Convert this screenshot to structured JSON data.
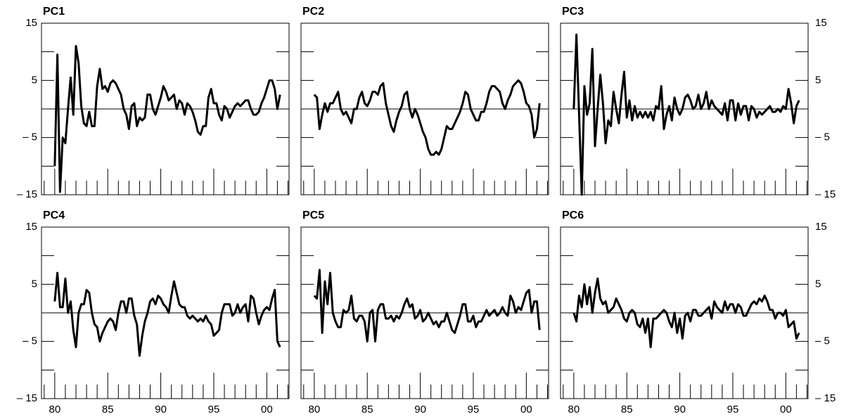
{
  "chart_data": {
    "type": "line",
    "layout": "small-multiples",
    "columns": 3,
    "color": "#000000",
    "x": [
      80,
      80.25,
      80.5,
      80.75,
      81,
      81.25,
      81.5,
      81.75,
      82,
      82.25,
      82.5,
      82.75,
      83,
      83.25,
      83.5,
      83.75,
      84,
      84.25,
      84.5,
      84.75,
      85,
      85.25,
      85.5,
      85.75,
      86,
      86.25,
      86.5,
      86.75,
      87,
      87.25,
      87.5,
      87.75,
      88,
      88.25,
      88.5,
      88.75,
      89,
      89.25,
      89.5,
      89.75,
      90,
      90.25,
      90.5,
      90.75,
      91,
      91.25,
      91.5,
      91.75,
      92,
      92.25,
      92.5,
      92.75,
      93,
      93.25,
      93.5,
      93.75,
      94,
      94.25,
      94.5,
      94.75,
      95,
      95.25,
      95.5,
      95.75,
      96,
      96.25,
      96.5,
      96.75,
      97,
      97.25,
      97.5,
      97.75,
      98,
      98.25,
      98.5,
      98.75,
      99,
      99.25,
      99.5,
      99.75,
      100,
      100.25,
      100.5,
      100.75,
      101,
      101.25
    ],
    "series": [
      {
        "name": "PC1",
        "values": [
          -10,
          9.5,
          -14.5,
          -5,
          -6,
          0,
          5.5,
          -1,
          11,
          8,
          0.5,
          -2.5,
          -3,
          -0.5,
          -3,
          -3,
          4,
          7,
          3.5,
          4,
          3,
          4.5,
          5,
          4.5,
          3.5,
          2.5,
          0,
          -1,
          -3.5,
          0.5,
          1,
          -3,
          -1.5,
          -2,
          -1.5,
          2.5,
          2.5,
          0,
          -1,
          0.5,
          2,
          4,
          3,
          1.5,
          2,
          2.5,
          0,
          1.5,
          1,
          -1,
          1,
          0.5,
          -0.5,
          -2,
          -4,
          -4.5,
          -3,
          -3,
          2,
          3.5,
          1,
          1,
          -1,
          -2,
          0.5,
          0,
          -1.5,
          -0.5,
          0.5,
          1,
          0.5,
          1,
          1.5,
          1.5,
          0,
          -1,
          -1,
          -0.5,
          1,
          2,
          3.5,
          5,
          5,
          3.5,
          0,
          2.5
        ]
      },
      {
        "name": "PC2",
        "values": [
          2.5,
          2,
          -3.5,
          -1,
          1,
          -0.5,
          1,
          1,
          2,
          3,
          0,
          -1,
          -0.5,
          -1.5,
          -2.5,
          0,
          0,
          2,
          3,
          1,
          0.5,
          1.5,
          3,
          3,
          2.5,
          4,
          4.5,
          1,
          -1,
          -3,
          -4,
          -2,
          -0.5,
          0.5,
          2.5,
          3,
          0,
          -1.5,
          0,
          -1,
          -2.5,
          -4,
          -5,
          -7,
          -8,
          -8,
          -7.5,
          -8,
          -7,
          -5,
          -3,
          -3.5,
          -3.5,
          -2.5,
          -1.5,
          -0.5,
          1,
          3,
          2.5,
          0,
          -1,
          -2,
          -2,
          -0.5,
          -0.5,
          1,
          3,
          4,
          4,
          3.5,
          3,
          1,
          0,
          1.5,
          2.5,
          4,
          4.5,
          5,
          4.5,
          3,
          1,
          0.5,
          -1,
          -5,
          -3.5,
          1
        ]
      },
      {
        "name": "PC3",
        "values": [
          0,
          13,
          -1,
          -15,
          4,
          -1,
          1,
          10.5,
          -6.5,
          0,
          6,
          1,
          -6,
          -2,
          -3,
          3,
          0,
          -2.5,
          2.5,
          6.5,
          -1.5,
          1.5,
          -2,
          0.5,
          -1.5,
          -0.5,
          -1.5,
          -0.5,
          -1.5,
          -0.5,
          -2,
          0.5,
          0,
          4,
          -3.5,
          -1,
          0.5,
          -2,
          2,
          0,
          -1,
          0,
          2,
          2.5,
          1.5,
          0,
          0.5,
          2.5,
          0,
          1,
          3,
          0,
          1.5,
          0.5,
          0,
          -0.5,
          -1,
          1,
          -2,
          1.5,
          1.5,
          -2,
          1,
          -1,
          0.5,
          0.5,
          -2,
          0.5,
          0,
          -1.5,
          -0.5,
          -1,
          -0.5,
          0,
          0.5,
          -0.5,
          -0.5,
          0,
          -0.5,
          0.5,
          0,
          3.5,
          1,
          -2.5,
          0.5,
          1.5
        ]
      },
      {
        "name": "PC4",
        "values": [
          2,
          7,
          1,
          1,
          6,
          0,
          2,
          -3,
          -6,
          0,
          1.5,
          1.5,
          4,
          3.5,
          0,
          -2,
          -2.5,
          -5,
          -3.5,
          -2.5,
          -1.5,
          -1,
          -1.5,
          -3,
          0,
          2,
          2,
          0,
          2.5,
          2.5,
          -0.5,
          -2,
          -7.5,
          -4,
          -1.5,
          0,
          2,
          2.5,
          1.5,
          3,
          2.5,
          1.5,
          1,
          0,
          3,
          5.5,
          3.5,
          1.5,
          1,
          1,
          -0.5,
          -1,
          -0.5,
          -1,
          -1.5,
          -1,
          -1.5,
          -0.5,
          -1.5,
          -2,
          -4,
          -3.5,
          -3,
          0,
          1.5,
          1.5,
          1.5,
          -0.5,
          0,
          1.5,
          0,
          1,
          1.5,
          -1.5,
          3,
          2.5,
          0,
          -2,
          -0.5,
          0.5,
          1,
          0.5,
          2.5,
          4,
          -5,
          -6
        ]
      },
      {
        "name": "PC5",
        "values": [
          3,
          2.5,
          7.5,
          -3.5,
          5.5,
          1.5,
          7,
          0,
          -1.5,
          -2.5,
          -2.5,
          0.5,
          0,
          0.5,
          3,
          -1,
          -1.5,
          -0.5,
          -0.5,
          -1.5,
          -5,
          0,
          0.5,
          -5,
          0.5,
          1.5,
          1.5,
          -1,
          -1,
          -0.5,
          -1.5,
          -0.5,
          -1,
          0,
          1.5,
          2.5,
          1,
          1.5,
          -1,
          -0.5,
          0.5,
          -1.5,
          -1,
          0,
          -1,
          -2,
          -1.5,
          -2.5,
          -1.5,
          -1.5,
          0,
          -1.5,
          -3,
          -3.5,
          -2,
          -0.5,
          1.5,
          1.5,
          -1.5,
          -1.5,
          -0.5,
          -2.5,
          -1.5,
          -1.5,
          -0.5,
          0.5,
          -0.5,
          0,
          0.5,
          -0.5,
          0,
          1,
          0,
          -0.5,
          3,
          2,
          0,
          1,
          0.5,
          2,
          3.5,
          4,
          0,
          2,
          2,
          -3
        ]
      },
      {
        "name": "PC6",
        "values": [
          0,
          -1.5,
          3,
          1,
          5,
          1.5,
          4.5,
          0,
          3.5,
          6,
          2.5,
          1.5,
          2,
          0,
          0.5,
          1,
          2.5,
          1.5,
          0.5,
          -1,
          -1.5,
          0,
          0.5,
          0,
          -2,
          -2.5,
          -1,
          -3.5,
          -1,
          -6,
          -1,
          -1,
          -0.5,
          0,
          0.5,
          0,
          -1.5,
          -2.5,
          0,
          -3.5,
          -1,
          -4.5,
          -0.5,
          0,
          -1.5,
          0.5,
          0.5,
          -0.5,
          -0.5,
          0,
          0.5,
          1,
          -1,
          2,
          1,
          0.5,
          0,
          2,
          0.5,
          1.5,
          1.5,
          0,
          1.5,
          1,
          -0.5,
          -0.5,
          0.5,
          1.5,
          2,
          1.5,
          2.5,
          2,
          3,
          2,
          0.5,
          0.5,
          -1,
          0,
          0,
          -0.5,
          0.5,
          -2.5,
          -2,
          -1.5,
          -4.5,
          -3.5
        ]
      }
    ],
    "xlim": [
      78.75,
      102.1
    ],
    "ylim": [
      -15,
      15
    ],
    "xticks": [
      80,
      85,
      90,
      95,
      {
        "value": 100,
        "label": "00"
      }
    ],
    "minor_xticks": [
      79,
      81,
      82,
      83,
      84,
      86,
      87,
      88,
      89,
      91,
      92,
      93,
      94,
      96,
      97,
      98,
      99,
      101,
      102
    ],
    "yticks": [
      15,
      5,
      {
        "value": -5,
        "label": "– 5"
      },
      {
        "value": -15,
        "label": "– 15"
      }
    ],
    "minor_yticks": [
      10,
      -10
    ],
    "reference_line": 0
  }
}
